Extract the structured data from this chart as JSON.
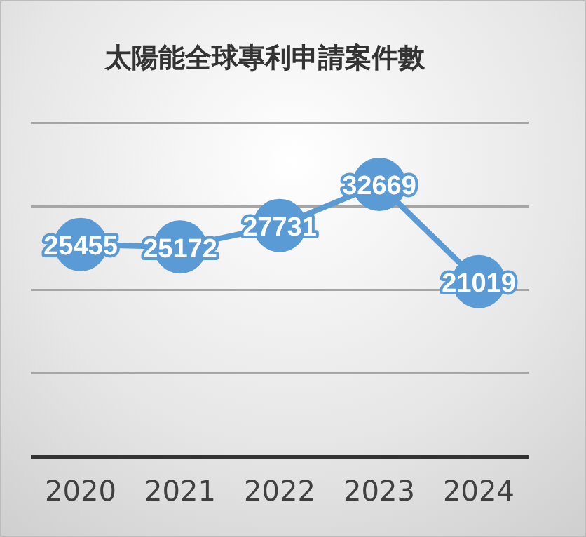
{
  "chart_data": {
    "type": "line",
    "title": "太陽能全球專利申請案件數",
    "categories": [
      "2020",
      "2021",
      "2022",
      "2023",
      "2024"
    ],
    "series": [
      {
        "color": "#5b9bd5",
        "values": [
          25455,
          25172,
          27731,
          32669,
          21019
        ]
      }
    ],
    "ylim": [
      0,
      40000
    ],
    "yticks": [
      {
        "value": 0,
        "label": null
      },
      {
        "value": 10000,
        "label": null
      },
      {
        "value": 20000,
        "label": null
      },
      {
        "value": 30000,
        "label": null
      },
      {
        "value": 40000,
        "label": null
      }
    ],
    "tick_labels": "x",
    "grid": "y",
    "marker": "circle",
    "line_style": "solid",
    "data_labels": true,
    "legend": false
  }
}
